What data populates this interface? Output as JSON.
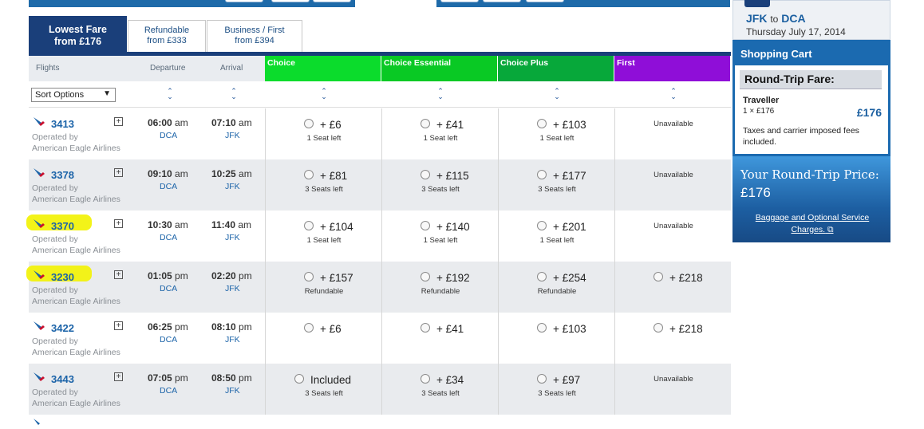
{
  "tabs": [
    {
      "label": "Lowest Fare",
      "sub": "from £176"
    },
    {
      "label": "Refundable",
      "sub": "from £333"
    },
    {
      "label": "Business / First",
      "sub": "from £394"
    }
  ],
  "headers": {
    "flights": "Flights",
    "departure": "Departure",
    "arrival": "Arrival",
    "cabins": [
      "Choice",
      "Choice Essential",
      "Choice Plus",
      "First"
    ]
  },
  "colors": {
    "choice": "#0bdc2c",
    "choice_essential": "#09c924",
    "choice_plus": "#07a83a",
    "first": "#8f0ed8",
    "brand_navy": "#1a3f7a"
  },
  "sort": {
    "label": "Sort Options"
  },
  "flights": [
    {
      "number": "3413",
      "highlight": false,
      "op1": "Operated by",
      "op2": "American Eagle Airlines",
      "dep_time": "06:00",
      "dep_ampm": "am",
      "dep_apt": "DCA",
      "arr_time": "07:10",
      "arr_ampm": "am",
      "arr_apt": "JFK",
      "fares": [
        {
          "price": "+ £6",
          "sub": "1 Seat left"
        },
        {
          "price": "+ £41",
          "sub": "1 Seat left"
        },
        {
          "price": "+ £103",
          "sub": "1 Seat left"
        },
        {
          "unavailable": "Unavailable"
        }
      ]
    },
    {
      "number": "3378",
      "highlight": false,
      "op1": "Operated by",
      "op2": "American Eagle Airlines",
      "dep_time": "09:10",
      "dep_ampm": "am",
      "dep_apt": "DCA",
      "arr_time": "10:25",
      "arr_ampm": "am",
      "arr_apt": "JFK",
      "fares": [
        {
          "price": "+ £81",
          "sub": "3 Seats left"
        },
        {
          "price": "+ £115",
          "sub": "3 Seats left"
        },
        {
          "price": "+ £177",
          "sub": "3 Seats left"
        },
        {
          "unavailable": "Unavailable"
        }
      ]
    },
    {
      "number": "3370",
      "highlight": true,
      "op1": "Operated by",
      "op2": "American Eagle Airlines",
      "dep_time": "10:30",
      "dep_ampm": "am",
      "dep_apt": "DCA",
      "arr_time": "11:40",
      "arr_ampm": "am",
      "arr_apt": "JFK",
      "fares": [
        {
          "price": "+ £104",
          "sub": "1 Seat left"
        },
        {
          "price": "+ £140",
          "sub": "1 Seat left"
        },
        {
          "price": "+ £201",
          "sub": "1 Seat left"
        },
        {
          "unavailable": "Unavailable"
        }
      ]
    },
    {
      "number": "3230",
      "highlight": true,
      "op1": "Operated by",
      "op2": "American Eagle Airlines",
      "dep_time": "01:05",
      "dep_ampm": "pm",
      "dep_apt": "DCA",
      "arr_time": "02:20",
      "arr_ampm": "pm",
      "arr_apt": "JFK",
      "fares": [
        {
          "price": "+ £157",
          "sub": "Refundable"
        },
        {
          "price": "+ £192",
          "sub": "Refundable"
        },
        {
          "price": "+ £254",
          "sub": "Refundable"
        },
        {
          "price": "+ £218",
          "sub": ""
        }
      ]
    },
    {
      "number": "3422",
      "highlight": false,
      "op1": "Operated by",
      "op2": "American Eagle Airlines",
      "dep_time": "06:25",
      "dep_ampm": "pm",
      "dep_apt": "DCA",
      "arr_time": "08:10",
      "arr_ampm": "pm",
      "arr_apt": "JFK",
      "fares": [
        {
          "price": "+ £6",
          "sub": ""
        },
        {
          "price": "+ £41",
          "sub": ""
        },
        {
          "price": "+ £103",
          "sub": ""
        },
        {
          "price": "+ £218",
          "sub": ""
        }
      ]
    },
    {
      "number": "3443",
      "highlight": false,
      "op1": "Operated by",
      "op2": "American Eagle Airlines",
      "dep_time": "07:05",
      "dep_ampm": "pm",
      "dep_apt": "DCA",
      "arr_time": "08:50",
      "arr_ampm": "pm",
      "arr_apt": "JFK",
      "fares": [
        {
          "price": "Included",
          "sub": "3 Seats left"
        },
        {
          "price": "+ £34",
          "sub": "3 Seats left"
        },
        {
          "price": "+ £97",
          "sub": "3 Seats left"
        },
        {
          "unavailable": "Unavailable"
        }
      ]
    }
  ],
  "sidebar": {
    "from": "JFK",
    "to_word": "to",
    "to": "DCA",
    "date": "Thursday July 17, 2014",
    "cart_title": "Shopping Cart",
    "rtf_label": "Round-Trip Fare:",
    "traveller": "Traveller",
    "traveller_count": "1 × £176",
    "traveller_price": "£176",
    "taxes": "Taxes and carrier imposed fees included.",
    "your_price_label": "Your Round-Trip Price:",
    "your_price": "£176",
    "baggage_link": "Baggage and Optional Service Charges."
  }
}
